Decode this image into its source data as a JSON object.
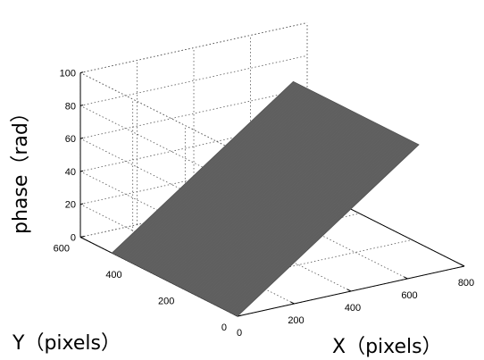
{
  "chart_data": {
    "type": "surface3d",
    "xlabel": "X（pixels）",
    "ylabel": "Y（pixels）",
    "zlabel": "phase（rad）",
    "xlim": [
      0,
      800
    ],
    "ylim": [
      0,
      600
    ],
    "zlim": [
      0,
      100
    ],
    "x_ticks": [
      "0",
      "200",
      "400",
      "600",
      "800"
    ],
    "y_ticks": [
      "0",
      "200",
      "400",
      "600"
    ],
    "z_ticks": [
      "0",
      "20",
      "40",
      "60",
      "80",
      "100"
    ],
    "grid": true,
    "surface": {
      "description_points": [
        {
          "x": 0,
          "y": 0,
          "z": 0
        },
        {
          "x": 640,
          "y": 0,
          "z": 80
        },
        {
          "x": 0,
          "y": 480,
          "z": 0
        },
        {
          "x": 640,
          "y": 480,
          "z": 80
        }
      ],
      "color": "#5f5f5f"
    }
  }
}
